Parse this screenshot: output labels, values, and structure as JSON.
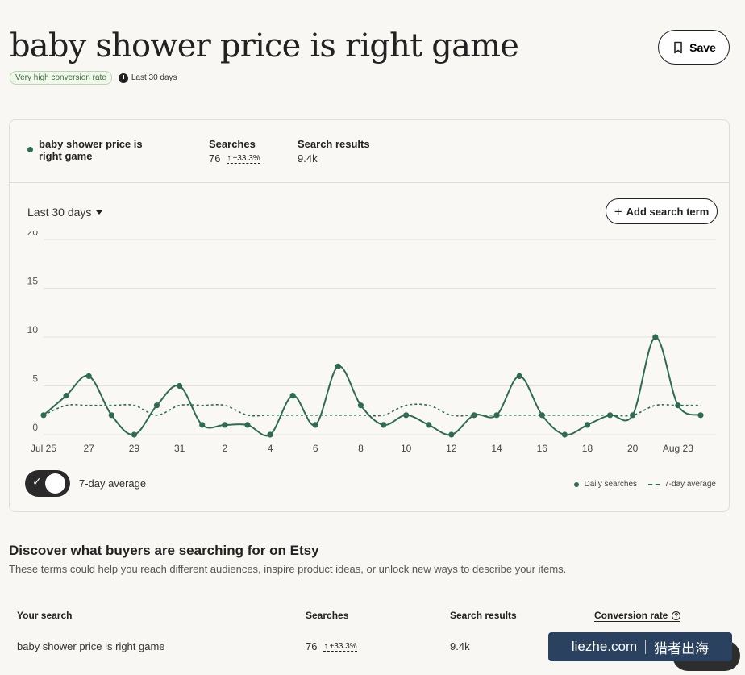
{
  "header": {
    "title": "baby shower price is right game",
    "save_label": "Save",
    "badge": "Very high conversion rate",
    "period": "Last 30 days"
  },
  "summary": {
    "term": "baby shower price is right game",
    "searches_label": "Searches",
    "searches_value": "76",
    "searches_trend": "+33.3%",
    "results_label": "Search results",
    "results_value": "9.4k"
  },
  "controls": {
    "range_label": "Last 30 days",
    "add_label": "Add search term",
    "toggle_label": "7-day average",
    "legend_daily": "Daily searches",
    "legend_avg": "7-day average"
  },
  "chart_data": {
    "type": "line",
    "x_ticks": [
      "Jul 25",
      "27",
      "29",
      "31",
      "2",
      "4",
      "6",
      "8",
      "10",
      "12",
      "14",
      "16",
      "18",
      "20",
      "Aug 23"
    ],
    "y_ticks": [
      "0",
      "5",
      "10",
      "15",
      "20"
    ],
    "ylim": [
      0,
      20
    ],
    "grid": true,
    "legend_position": "bottom-right",
    "x": [
      "Jul 25",
      "Jul 26",
      "Jul 27",
      "Jul 28",
      "Jul 29",
      "Jul 30",
      "Jul 31",
      "Aug 1",
      "Aug 2",
      "Aug 3",
      "Aug 4",
      "Aug 5",
      "Aug 6",
      "Aug 7",
      "Aug 8",
      "Aug 9",
      "Aug 10",
      "Aug 11",
      "Aug 12",
      "Aug 13",
      "Aug 14",
      "Aug 15",
      "Aug 16",
      "Aug 17",
      "Aug 18",
      "Aug 19",
      "Aug 20",
      "Aug 21",
      "Aug 22",
      "Aug 23"
    ],
    "series": [
      {
        "name": "Daily searches",
        "values": [
          2,
          4,
          6,
          2,
          0,
          3,
          5,
          1,
          1,
          1,
          0,
          4,
          1,
          7,
          3,
          1,
          2,
          1,
          0,
          2,
          2,
          6,
          2,
          0,
          1,
          2,
          2,
          10,
          3,
          2
        ],
        "color": "#2e6b52",
        "style": "solid"
      },
      {
        "name": "7-day average",
        "values": [
          2,
          3,
          3,
          3,
          3,
          2,
          3,
          3,
          3,
          2,
          2,
          2,
          2,
          2,
          2,
          2,
          3,
          3,
          2,
          2,
          2,
          2,
          2,
          2,
          2,
          2,
          2,
          3,
          3,
          3
        ],
        "color": "#2e6b52",
        "style": "dashed"
      }
    ]
  },
  "discover": {
    "title": "Discover what buyers are searching for on Etsy",
    "subtitle": "These terms could help you reach different audiences, inspire product ideas, or unlock new ways to describe your items.",
    "columns": [
      "Your search",
      "Searches",
      "Search results",
      "Conversion rate"
    ],
    "row": {
      "term": "baby shower price is right game",
      "searches": "76",
      "trend": "+33.3%",
      "results": "9.4k"
    }
  },
  "watermark": {
    "left": "liezhe.com",
    "right": "猎者出海"
  },
  "colors": {
    "accent": "#2e6b52",
    "badge_bg": "#f1f7ec",
    "badge_text": "#3b6e3b"
  }
}
